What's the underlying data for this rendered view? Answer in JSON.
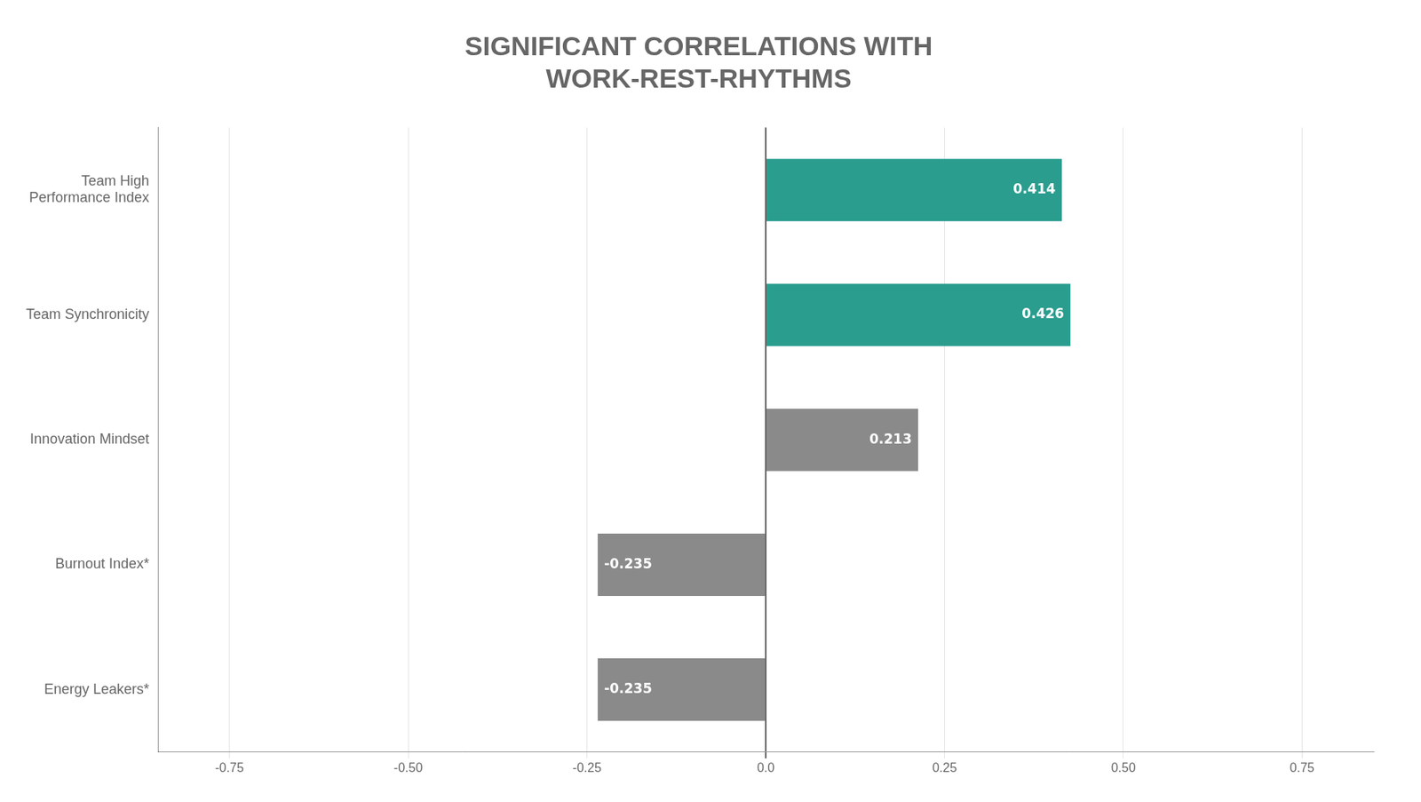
{
  "chart_data": {
    "type": "bar",
    "orientation": "horizontal",
    "title": "SIGNIFICANT CORRELATIONS WITH\nWORK-REST-RHYTHMS",
    "categories": [
      "Team High\nPerformance Index",
      "Team Synchronicity",
      "Innovation Mindset",
      "Burnout Index*",
      "Energy Leakers*"
    ],
    "values": [
      0.414,
      0.426,
      0.213,
      -0.235,
      -0.235
    ],
    "colors": [
      "#2a9d8f",
      "#2a9d8f",
      "#8a8a8a",
      "#8a8a8a",
      "#8a8a8a"
    ],
    "data_labels": true,
    "xlim": [
      -0.85,
      0.85
    ],
    "xticks": [
      -0.75,
      {
        "value": -0.5,
        "label": "-0.50"
      },
      -0.25,
      {
        "value": 0.0,
        "label": "0.0"
      },
      0.25,
      {
        "value": 0.5,
        "label": "0.50"
      },
      0.75
    ],
    "grid": true
  }
}
